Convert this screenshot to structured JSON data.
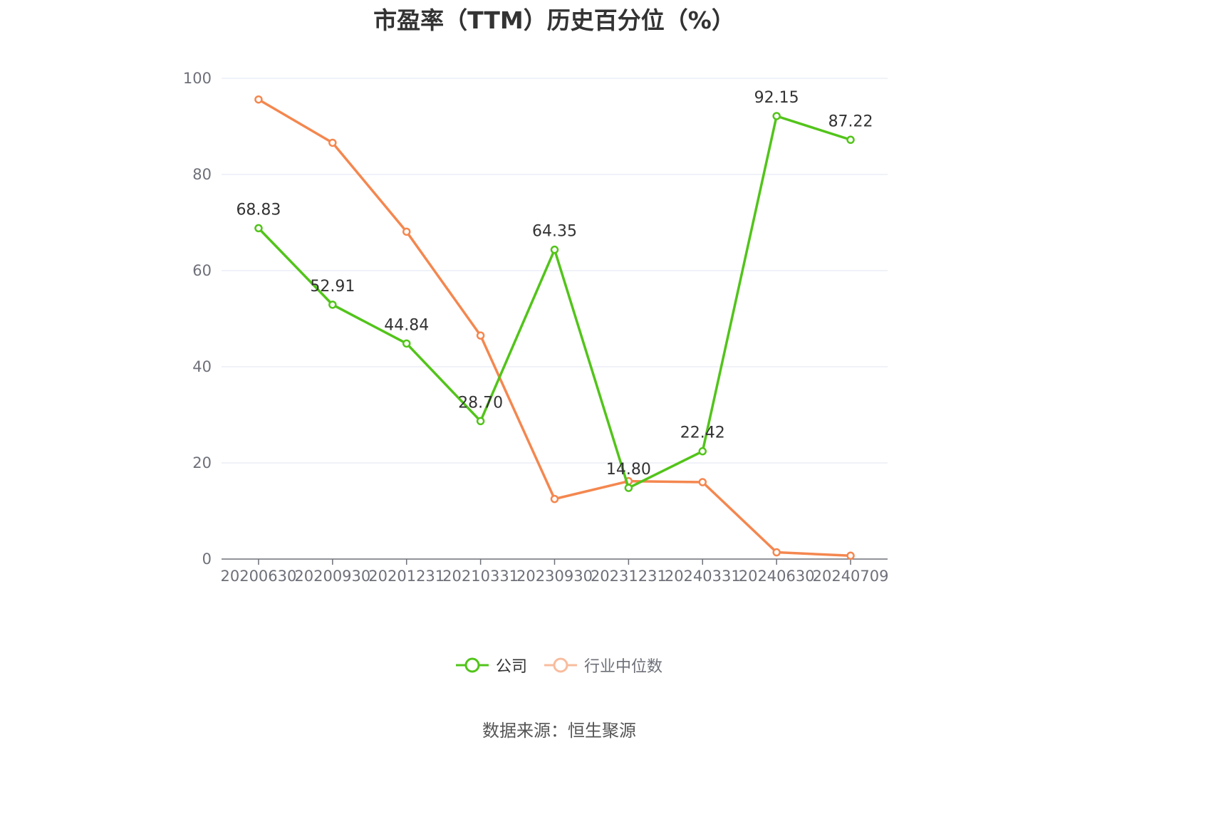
{
  "chart_data": {
    "type": "line",
    "title": "市盈率（TTM）历史百分位（%）",
    "categories": [
      "20200630",
      "20200930",
      "20201231",
      "20210331",
      "20230930",
      "20231231",
      "20240331",
      "20240630",
      "20240709"
    ],
    "series": [
      {
        "name": "公司",
        "color": "#52c41a",
        "values": [
          68.83,
          52.91,
          44.84,
          28.7,
          64.35,
          14.8,
          22.42,
          92.15,
          87.22
        ],
        "labels": [
          "68.83",
          "52.91",
          "44.84",
          "28.70",
          "64.35",
          "14.80",
          "22.42",
          "92.15",
          "87.22"
        ]
      },
      {
        "name": "行业中位数",
        "color": "#f4874f",
        "values": [
          95.6,
          86.6,
          68.1,
          46.5,
          12.5,
          16.2,
          16.0,
          1.4,
          0.7
        ]
      }
    ],
    "ylim": [
      0,
      100
    ],
    "yticks": [
      0,
      20,
      40,
      60,
      80,
      100
    ],
    "grid": true,
    "legend_position": "bottom"
  },
  "source": "数据来源：恒生聚源"
}
